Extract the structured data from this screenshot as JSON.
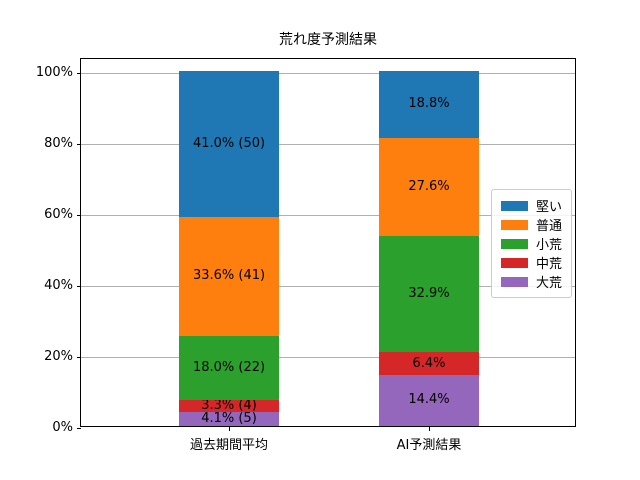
{
  "figure": {
    "background": "#ffffff",
    "axis_color": "#000000"
  },
  "chart_data": {
    "type": "bar",
    "stacked": true,
    "title": "荒れ度予測結果",
    "categories": [
      "過去期間平均",
      "AI予測結果"
    ],
    "series": [
      {
        "name": "堅い",
        "color": "#1f77b4",
        "values": [
          41.0,
          18.8
        ],
        "labels": [
          "41.0% (50)",
          "18.8%"
        ]
      },
      {
        "name": "普通",
        "color": "#ff7f0e",
        "values": [
          33.6,
          27.6
        ],
        "labels": [
          "33.6% (41)",
          "27.6%"
        ]
      },
      {
        "name": "小荒",
        "color": "#2ca02c",
        "values": [
          18.0,
          32.9
        ],
        "labels": [
          "18.0% (22)",
          "32.9%"
        ]
      },
      {
        "name": "中荒",
        "color": "#d62728",
        "values": [
          3.3,
          6.4
        ],
        "labels": [
          "3.3% (4)",
          "6.4%"
        ]
      },
      {
        "name": "大荒",
        "color": "#9467bd",
        "values": [
          4.1,
          14.4
        ],
        "labels": [
          "4.1% (5)",
          "14.4%"
        ]
      }
    ],
    "stack_order_bottom_to_top": [
      "大荒",
      "中荒",
      "小荒",
      "普通",
      "堅い"
    ],
    "yticks": [
      {
        "label": "0%",
        "value": 0
      },
      {
        "label": "20%",
        "value": 20
      },
      {
        "label": "40%",
        "value": 40
      },
      {
        "label": "60%",
        "value": 60
      },
      {
        "label": "80%",
        "value": 80
      },
      {
        "label": "100%",
        "value": 100
      }
    ],
    "ylim": [
      0,
      104
    ],
    "grid": true,
    "grid_color": "#b0b0b0",
    "legend_position": "center-right-inside",
    "label_color": "#000000"
  }
}
